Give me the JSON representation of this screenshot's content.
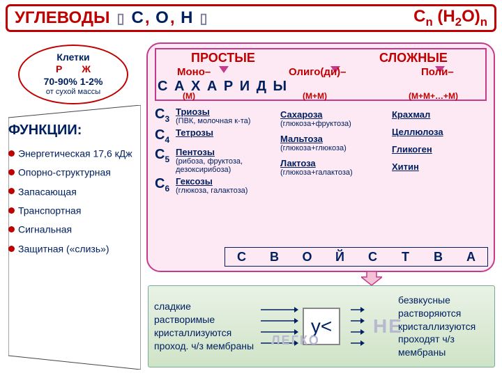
{
  "colors": {
    "accent": "#c00000",
    "navy": "#002060",
    "pink_bg": "#fde9f3",
    "pink_border": "#c63a8c",
    "green1": "#e9f2e6",
    "green2": "#cfe3c7",
    "gray": "#b8b8d0"
  },
  "header": {
    "title": "УГЛЕВОДЫ",
    "elements": "С, О, Н",
    "formula": "Сn (H2O)n"
  },
  "oval": {
    "l1": "Клетки",
    "l2a": "Р",
    "l2b": "Ж",
    "l3": "70-90%   1-2%",
    "l4": "от сухой массы"
  },
  "class": {
    "simple": "ПРОСТЫЕ",
    "complex": "СЛОЖНЫЕ",
    "mono": "Моно–",
    "oligo": "Олиго(ди)–",
    "poly": "Поли–",
    "sah": "С    А    Х    А    Р    И    Д    Ы",
    "m1": "(М)",
    "m2": "(М+М)",
    "m3": "(М+М+…+М)"
  },
  "mono": [
    {
      "c": "C3",
      "name": "Триозы",
      "det": "(ПВК, молочная к-та)"
    },
    {
      "c": "C4",
      "name": "Тетрозы",
      "det": ""
    },
    {
      "c": "C5",
      "name": "Пентозы",
      "det": "(рибоза, фруктоза, дезоксирибоза)"
    },
    {
      "c": "C6",
      "name": "Гексозы",
      "det": "(глюкоза, галактоза)"
    }
  ],
  "di": [
    {
      "name": "Сахароза",
      "det": "(глюкоза+фруктоза)"
    },
    {
      "name": "Мальтоза",
      "det": "(глюкоза+глюкоза)"
    },
    {
      "name": "Лактоза",
      "det": "(глюкоза+галактоза)"
    }
  ],
  "poly_items": [
    "Крахмал",
    "Целлюлоза",
    "Гликоген",
    "Хитин"
  ],
  "svo": [
    "С",
    "В",
    "О",
    "Й",
    "С",
    "Т",
    "В",
    "А"
  ],
  "funcs": {
    "title": "ФУНКЦИИ:",
    "items": [
      "Энергетическая 17,6 кДж",
      "Опорно-структурная",
      "Запасающая",
      "Транспортная",
      "Сигнальная",
      "Защитная («слизь»)"
    ]
  },
  "props": {
    "left": [
      "сладкие",
      "растворимые",
      "кристаллизуются",
      "проход. ч/з мембраны"
    ],
    "mid": "у<",
    "legko": "ЛЕГКО",
    "ne": "НЕ",
    "right": [
      "безвкусные",
      "растворяются",
      "кристаллизуются",
      "проходят ч/з мембраны"
    ]
  }
}
